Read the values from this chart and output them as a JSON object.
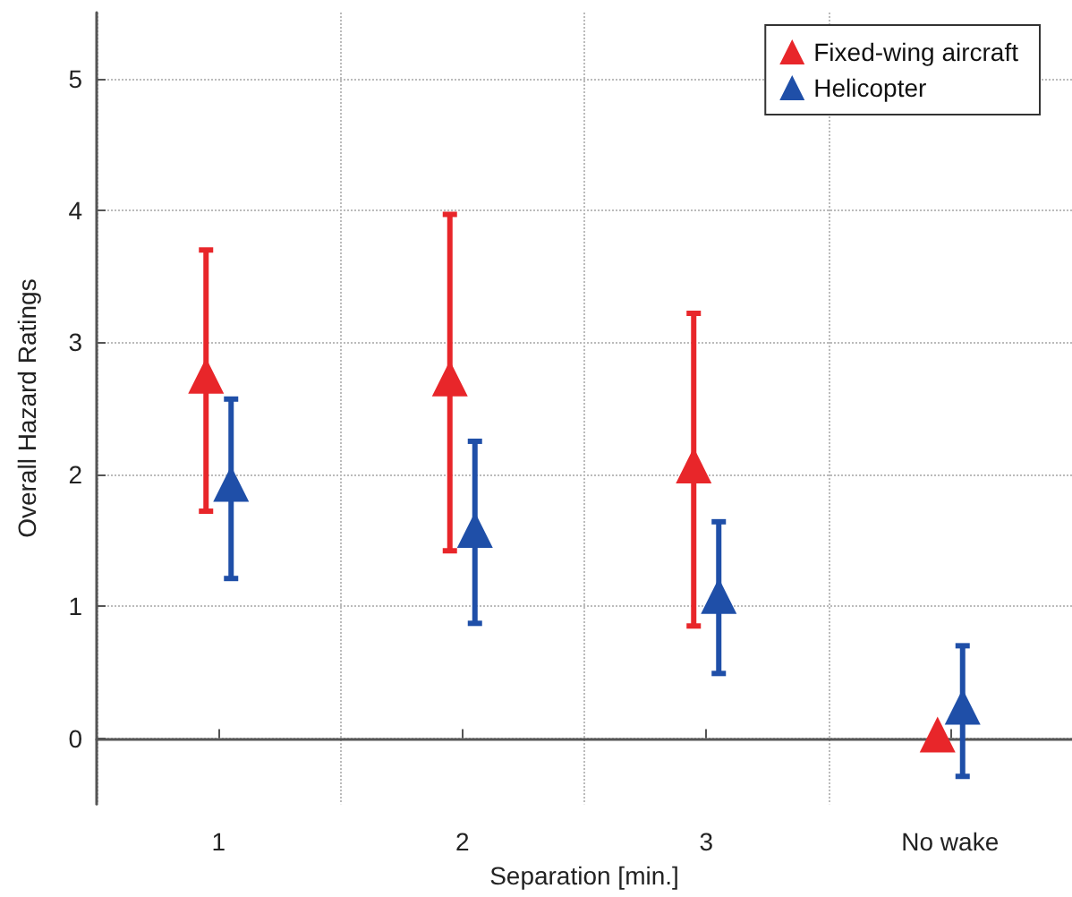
{
  "chart_data": {
    "type": "scatter",
    "xlabel": "Separation [min.]",
    "ylabel": "Overall Hazard Ratings",
    "categories": [
      "1",
      "2",
      "3",
      "No wake"
    ],
    "series": [
      {
        "name": "Fixed-wing aircraft",
        "color": "#e8262a",
        "values": [
          2.72,
          2.7,
          2.04,
          0
        ],
        "errors": [
          [
            1.72,
            3.7
          ],
          [
            1.42,
            3.97
          ],
          [
            0.85,
            3.22
          ],
          null
        ]
      },
      {
        "name": "Helicopter",
        "color": "#1f4fa8",
        "values": [
          1.9,
          1.55,
          1.05,
          0.21
        ],
        "errors": [
          [
            1.21,
            2.57
          ],
          [
            0.87,
            2.25
          ],
          [
            0.49,
            1.64
          ],
          [
            -0.29,
            0.7
          ]
        ]
      }
    ],
    "ylim": [
      -0.5,
      5.5
    ],
    "yticks": [
      0,
      1,
      2,
      3,
      4,
      5
    ],
    "grid": true,
    "legend": "top right",
    "marker": "triangle"
  }
}
